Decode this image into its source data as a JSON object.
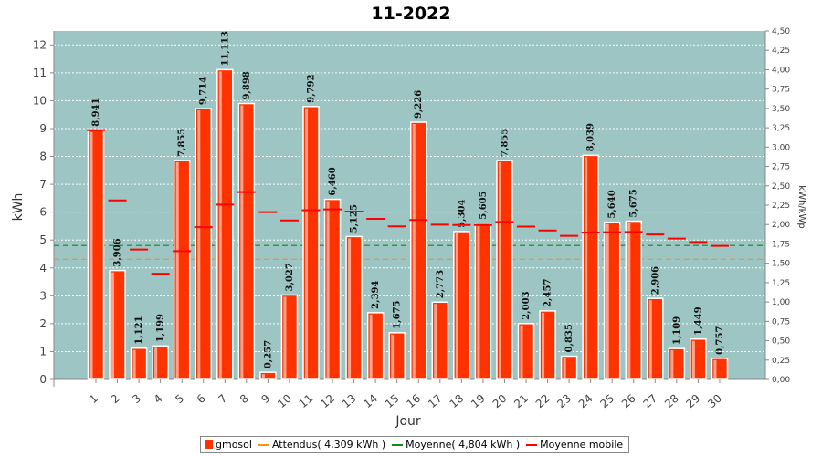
{
  "chart_data": {
    "type": "bar",
    "title": "11-2022",
    "xlabel": "Jour",
    "ylabel": "kWh",
    "ylabel_right": "kWh/kWp",
    "ylim": [
      0,
      12.5
    ],
    "ylim_right": [
      0,
      4.5
    ],
    "yticks": [
      "0",
      "1",
      "2",
      "3",
      "4",
      "5",
      "6",
      "7",
      "8",
      "9",
      "10",
      "11",
      "12"
    ],
    "yticks_right": [
      "0,00",
      "0,25",
      "0,50",
      "0,75",
      "1,00",
      "1,25",
      "1,50",
      "1,75",
      "2,00",
      "2,25",
      "2,50",
      "2,75",
      "3,00",
      "3,25",
      "3,50",
      "3,75",
      "4,00",
      "4,25",
      "4,50"
    ],
    "categories": [
      "1",
      "2",
      "3",
      "4",
      "5",
      "6",
      "7",
      "8",
      "9",
      "10",
      "11",
      "12",
      "13",
      "14",
      "15",
      "16",
      "17",
      "18",
      "19",
      "20",
      "21",
      "22",
      "23",
      "24",
      "25",
      "26",
      "27",
      "28",
      "29",
      "30"
    ],
    "series": [
      {
        "name": "gmosol",
        "values": [
          8.941,
          3.906,
          1.121,
          1.199,
          7.855,
          9.714,
          11.113,
          9.898,
          0.257,
          3.027,
          9.792,
          6.46,
          5.125,
          2.394,
          1.675,
          9.226,
          2.773,
          5.304,
          5.605,
          7.855,
          2.003,
          2.457,
          0.835,
          8.039,
          5.64,
          5.675,
          2.906,
          1.109,
          1.449,
          0.757
        ],
        "labels": [
          "8,941",
          "3,906",
          "1,121",
          "1,199",
          "7,855",
          "9,714",
          "11,113",
          "9,898",
          "0,257",
          "3,027",
          "9,792",
          "6,460",
          "5,125",
          "2,394",
          "1,675",
          "9,226",
          "2,773",
          "5,304",
          "5,605",
          "7,855",
          "2,003",
          "2,457",
          "0,835",
          "8,039",
          "5,640",
          "5,675",
          "2,906",
          "1,109",
          "1,449",
          "0,757"
        ]
      },
      {
        "name": "Moyenne mobile",
        "values": [
          8.94,
          6.42,
          4.66,
          3.79,
          4.6,
          5.46,
          6.27,
          6.72,
          6.0,
          5.7,
          6.07,
          6.1,
          6.02,
          5.76,
          5.49,
          5.72,
          5.55,
          5.54,
          5.54,
          5.65,
          5.48,
          5.34,
          5.15,
          5.27,
          5.28,
          5.29,
          5.2,
          5.05,
          4.93,
          4.79
        ]
      }
    ],
    "reference_lines": [
      {
        "name": "Attendus",
        "label": "Attendus( 4,309 kWh )",
        "value": 4.309,
        "color": "#ff8c1a"
      },
      {
        "name": "Moyenne",
        "label": "Moyenne( 4,804 kWh )",
        "value": 4.804,
        "color": "#138a13"
      }
    ],
    "legend": [
      {
        "label": "gmosol",
        "kind": "box",
        "color": "#ff3300"
      },
      {
        "label": "Attendus( 4,309 kWh )",
        "kind": "line",
        "color": "#ff8c1a"
      },
      {
        "label": "Moyenne( 4,804 kWh )",
        "kind": "line",
        "color": "#138a13"
      },
      {
        "label": "Moyenne mobile",
        "kind": "line",
        "color": "#ff0000"
      }
    ],
    "legend_position": "bottom",
    "grid": true,
    "colors": {
      "plot_bg": "#9dc5c3",
      "bar": "#ff3300",
      "moving_avg": "#ff0000"
    }
  }
}
